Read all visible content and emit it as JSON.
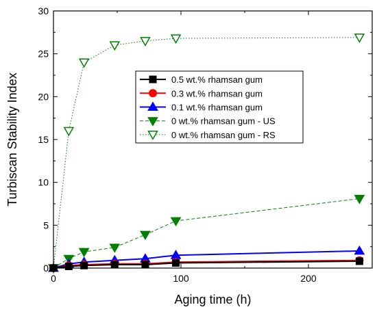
{
  "chart_data": {
    "type": "line",
    "xlabel": "Aging time (h)",
    "ylabel": "Turbiscan Stability Index",
    "xlim": [
      0,
      250
    ],
    "ylim": [
      0,
      30
    ],
    "xticks": [
      0,
      100,
      200
    ],
    "xtick_labels": [
      "0",
      "100",
      "200"
    ],
    "yticks": [
      0,
      5,
      10,
      15,
      20,
      25,
      30
    ],
    "ytick_labels": [
      "0",
      "5",
      "10",
      "15",
      "20",
      "25",
      "30"
    ],
    "grid": false,
    "legend_position": "upper-center",
    "series": [
      {
        "name": "0.5 wt.% rhamsan gum",
        "color": "#000000",
        "marker": "square",
        "line_style": "solid",
        "x": [
          0,
          12,
          24,
          48,
          72,
          96,
          240
        ],
        "y": [
          0,
          0.2,
          0.3,
          0.4,
          0.4,
          0.6,
          0.8
        ]
      },
      {
        "name": "0.3 wt.% rhamsan gum",
        "color": "#ff0000",
        "marker": "circle",
        "line_style": "solid",
        "x": [
          0,
          12,
          24,
          48,
          72,
          96,
          240
        ],
        "y": [
          0,
          0.3,
          0.4,
          0.5,
          0.5,
          0.7,
          0.9
        ]
      },
      {
        "name": "0.1 wt.% rhamsan gum",
        "color": "#0000ff",
        "marker": "triangle-up",
        "line_style": "solid",
        "x": [
          0,
          12,
          24,
          48,
          72,
          96,
          240
        ],
        "y": [
          0,
          0.5,
          0.7,
          0.9,
          1.1,
          1.5,
          2.0
        ]
      },
      {
        "name": "0 wt.% rhamsan gum - US",
        "color": "#008000",
        "marker": "triangle-down-filled",
        "line_style": "dashed",
        "x": [
          0,
          12,
          24,
          48,
          72,
          96,
          240
        ],
        "y": [
          0,
          1.1,
          1.9,
          2.4,
          3.9,
          5.5,
          8.1
        ]
      },
      {
        "name": "0 wt.% rhamsan gum - RS",
        "color": "#008000",
        "marker": "triangle-down-open",
        "line_style": "dotted",
        "x": [
          0,
          12,
          24,
          48,
          72,
          96,
          240
        ],
        "y": [
          0,
          16.0,
          24.0,
          26.0,
          26.5,
          26.8,
          26.9
        ]
      }
    ]
  }
}
